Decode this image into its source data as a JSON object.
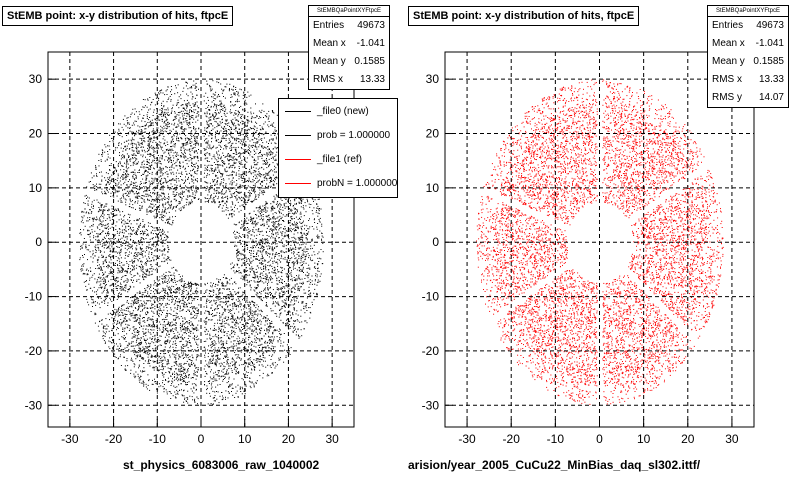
{
  "chart_data": [
    {
      "type": "scatter",
      "title": "StEMB point: x-y distribution of hits, ftpcE",
      "histogram_name": "StEMBQaPointXYFtpcE",
      "xlim": [
        -35,
        35
      ],
      "ylim": [
        -34,
        35
      ],
      "x_ticks": [
        -30,
        -20,
        -10,
        0,
        10,
        20,
        30
      ],
      "y_ticks": [
        -30,
        -20,
        -10,
        0,
        10,
        20,
        30
      ],
      "grid": true,
      "marker_color": "#000000",
      "distribution": {
        "shape": "annulus",
        "center": [
          0,
          0
        ],
        "inner_radius": 7.5,
        "outer_radius_x": 28,
        "outer_radius_y": 30,
        "sector_gaps": 6
      },
      "stats": [
        {
          "label": "Entries",
          "value": "49673"
        },
        {
          "label": "Mean x",
          "value": "-1.041"
        },
        {
          "label": "Mean y",
          "value": "0.1585"
        },
        {
          "label": "RMS x",
          "value": "13.33"
        }
      ],
      "legend_position": "top-right",
      "legend": [
        {
          "label": "_file0 (new)",
          "color": "#000000"
        },
        {
          "label": "prob = 1.000000",
          "color": "#000000"
        },
        {
          "label": "_file1 (ref)",
          "color": "#ff0000"
        },
        {
          "label": "probN = 1.000000",
          "color": "#ff0000"
        }
      ],
      "xlabel": "st_physics_6083006_raw_1040002"
    },
    {
      "type": "scatter",
      "title": "StEMB point: x-y distribution of hits, ftpcE",
      "histogram_name": "StEMBQaPointXYFtpcE",
      "xlim": [
        -35,
        35
      ],
      "ylim": [
        -34,
        35
      ],
      "x_ticks": [
        -30,
        -20,
        -10,
        0,
        10,
        20,
        30
      ],
      "y_ticks": [
        -30,
        -20,
        -10,
        0,
        10,
        20,
        30
      ],
      "grid": true,
      "marker_color": "#ff0000",
      "distribution": {
        "shape": "annulus",
        "center": [
          0,
          0
        ],
        "inner_radius": 7.5,
        "outer_radius_x": 28,
        "outer_radius_y": 30,
        "sector_gaps": 6
      },
      "stats": [
        {
          "label": "Entries",
          "value": "49673"
        },
        {
          "label": "Mean x",
          "value": "-1.041"
        },
        {
          "label": "Mean y",
          "value": "0.1585"
        },
        {
          "label": "RMS x",
          "value": "13.33"
        },
        {
          "label": "RMS y",
          "value": "14.07"
        }
      ],
      "xlabel": "arision/year_2005_CuCu22_MinBias_daq_sl302.ittf/"
    }
  ]
}
